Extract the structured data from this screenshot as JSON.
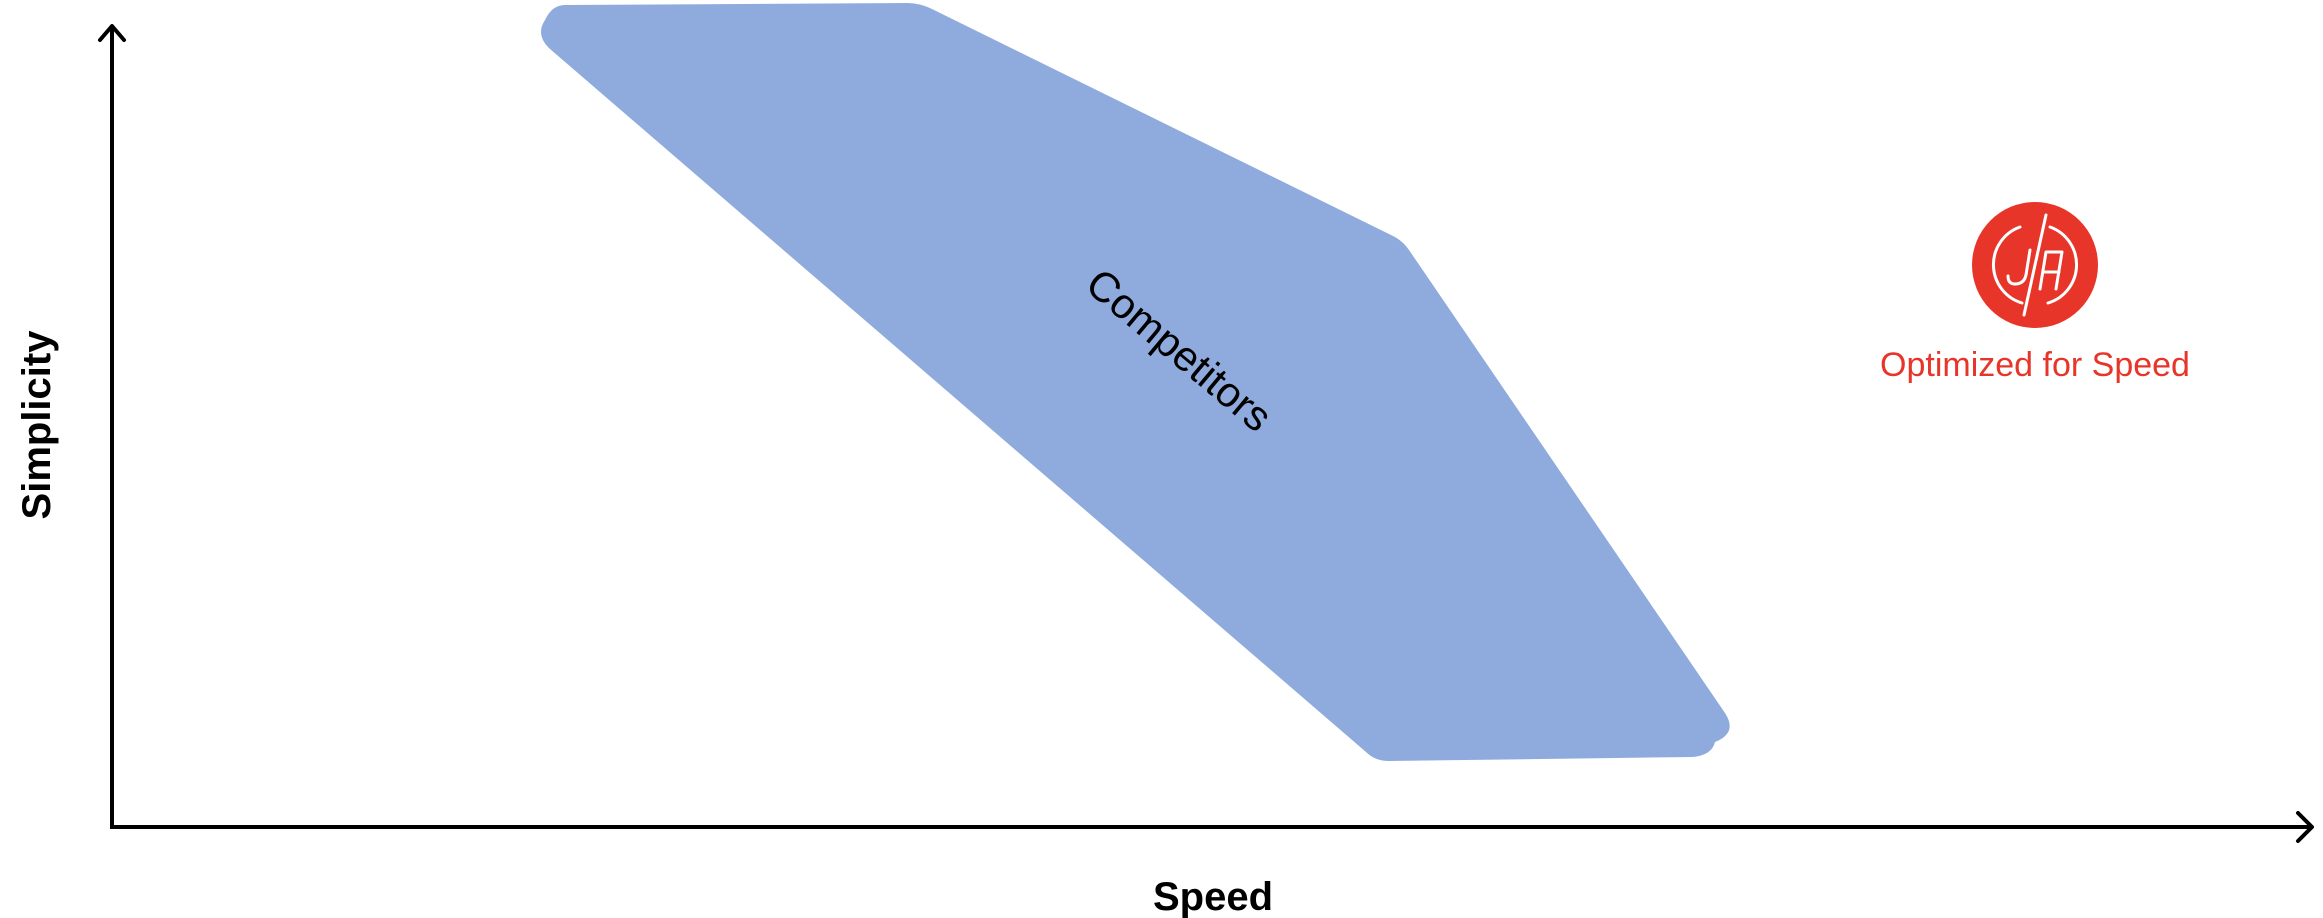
{
  "axes": {
    "x_label": "Speed",
    "y_label": "Simplicity"
  },
  "regions": {
    "competitors_label": "Competitors",
    "competitors_color": "#8FABDD"
  },
  "brand": {
    "label": "Optimized for Speed",
    "logo_icon": "ja-monogram-icon",
    "color": "#E8352A"
  }
}
